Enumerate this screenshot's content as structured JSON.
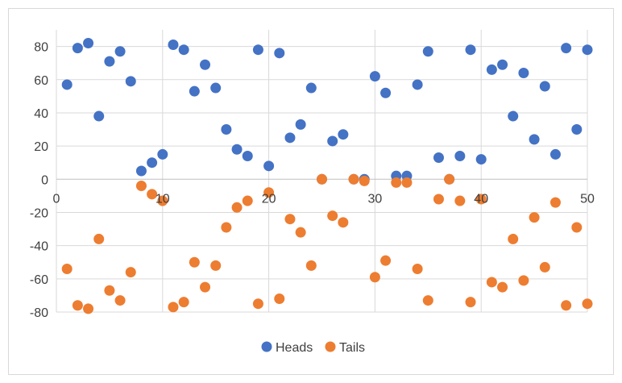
{
  "chart_data": {
    "type": "scatter",
    "title": "",
    "xlabel": "",
    "ylabel": "",
    "xlim": [
      0,
      50
    ],
    "ylim": [
      -80,
      90
    ],
    "x_ticks": [
      "0",
      "10",
      "20",
      "30",
      "40",
      "50"
    ],
    "y_ticks": [
      "80",
      "60",
      "40",
      "20",
      "0",
      "-20",
      "-40",
      "-60",
      "-80"
    ],
    "grid": true,
    "legend_position": "bottom",
    "series": [
      {
        "name": "Heads",
        "color": "#4472C4",
        "x": [
          1,
          2,
          3,
          4,
          5,
          6,
          7,
          8,
          9,
          10,
          11,
          12,
          13,
          14,
          15,
          16,
          17,
          18,
          19,
          20,
          21,
          22,
          23,
          24,
          25,
          26,
          27,
          28,
          29,
          30,
          31,
          32,
          33,
          34,
          35,
          36,
          37,
          38,
          39,
          40,
          41,
          42,
          43,
          44,
          45,
          46,
          47,
          48,
          49,
          50
        ],
        "y": [
          57,
          79,
          82,
          38,
          71,
          77,
          59,
          5,
          10,
          15,
          81,
          78,
          53,
          69,
          55,
          30,
          18,
          14,
          78,
          8,
          76,
          25,
          33,
          55,
          0,
          23,
          27,
          0,
          0,
          62,
          52,
          2,
          2,
          57,
          77,
          13,
          0,
          14,
          78,
          12,
          66,
          69,
          38,
          64,
          24,
          56,
          15,
          79,
          30,
          78
        ]
      },
      {
        "name": "Tails",
        "color": "#ED7D31",
        "x": [
          1,
          2,
          3,
          4,
          5,
          6,
          7,
          8,
          9,
          10,
          11,
          12,
          13,
          14,
          15,
          16,
          17,
          18,
          19,
          20,
          21,
          22,
          23,
          24,
          25,
          26,
          27,
          28,
          29,
          30,
          31,
          32,
          33,
          34,
          35,
          36,
          37,
          38,
          39,
          40,
          41,
          42,
          43,
          44,
          45,
          46,
          47,
          48,
          49,
          50
        ],
        "y": [
          -54,
          -76,
          -78,
          -36,
          -67,
          -73,
          -56,
          -4,
          -9,
          -13,
          -77,
          -74,
          -50,
          -65,
          -52,
          -29,
          -17,
          -13,
          -75,
          -8,
          -72,
          -24,
          -32,
          -52,
          0,
          -22,
          -26,
          0,
          -1,
          -59,
          -49,
          -2,
          -2,
          -54,
          -73,
          -12,
          0,
          -13,
          -74,
          -12,
          -62,
          -65,
          -36,
          -61,
          -23,
          -53,
          -14,
          -76,
          -29,
          -75
        ]
      }
    ]
  }
}
